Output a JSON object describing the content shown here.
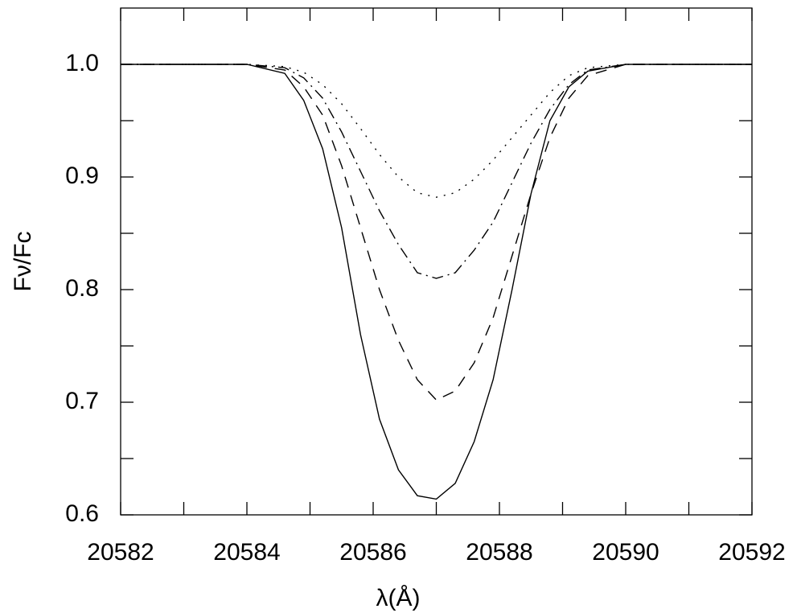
{
  "chart_data": {
    "type": "line",
    "x_label": "λ(Å)",
    "y_label": "Fν/Fc",
    "x": [
      20582,
      20584,
      20584.6,
      20584.9,
      20585.2,
      20585.5,
      20585.8,
      20586.1,
      20586.4,
      20586.7,
      20587,
      20587.3,
      20587.6,
      20587.9,
      20588.2,
      20588.5,
      20588.8,
      20589.1,
      20589.4,
      20590,
      20592
    ],
    "series": [
      {
        "color": "#000000",
        "dash": "none",
        "values": [
          1,
          1,
          0.992,
          0.968,
          0.925,
          0.855,
          0.76,
          0.685,
          0.64,
          0.617,
          0.614,
          0.628,
          0.665,
          0.72,
          0.8,
          0.885,
          0.95,
          0.98,
          0.994,
          1,
          1
        ]
      },
      {
        "color": "#000000",
        "dash": "14 10",
        "values": [
          1,
          1,
          0.995,
          0.98,
          0.955,
          0.91,
          0.855,
          0.8,
          0.755,
          0.72,
          0.702,
          0.71,
          0.735,
          0.775,
          0.83,
          0.885,
          0.935,
          0.97,
          0.99,
          1,
          1
        ]
      },
      {
        "color": "#000000",
        "dash": "14 6 2 6",
        "values": [
          1,
          1,
          0.997,
          0.988,
          0.97,
          0.94,
          0.905,
          0.87,
          0.84,
          0.815,
          0.81,
          0.815,
          0.835,
          0.86,
          0.895,
          0.93,
          0.96,
          0.982,
          0.995,
          1,
          1
        ]
      },
      {
        "color": "#000000",
        "dash": "2 8",
        "values": [
          1,
          1,
          0.998,
          0.993,
          0.982,
          0.965,
          0.943,
          0.92,
          0.9,
          0.886,
          0.882,
          0.886,
          0.898,
          0.915,
          0.935,
          0.955,
          0.975,
          0.99,
          0.997,
          1,
          1
        ]
      }
    ],
    "xlim": [
      20582,
      20592
    ],
    "ylim": [
      0.6,
      1.05
    ],
    "xticks": [
      20582,
      20584,
      20586,
      20588,
      20590,
      20592
    ],
    "xminor_ticks": [
      20583,
      20585,
      20587,
      20589,
      20591
    ],
    "yticks": [
      0.6,
      0.7,
      0.8,
      0.9,
      {
        "value": 1,
        "label": "1.0"
      }
    ],
    "yminor_ticks": [
      0.65,
      0.75,
      0.85,
      0.95
    ],
    "grid": false
  }
}
